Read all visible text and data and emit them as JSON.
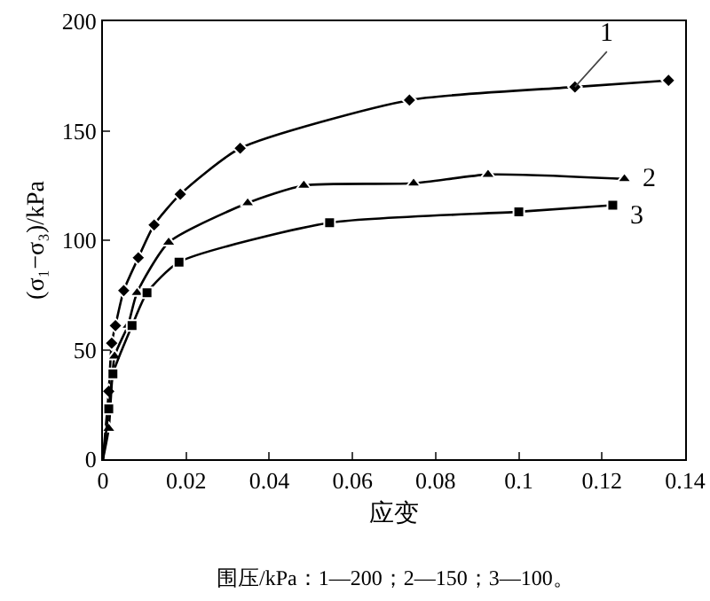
{
  "chart_data": {
    "type": "line",
    "xlabel": "应变",
    "ylabel": "(σ₁−σ₃)/kPa",
    "xlim": [
      0,
      0.14
    ],
    "xticks": [
      0,
      0.02,
      0.04,
      0.06,
      0.08,
      0.1,
      0.12,
      0.14
    ],
    "ylim": [
      0,
      200
    ],
    "yticks": [
      0,
      50,
      100,
      150,
      200
    ],
    "grid": false,
    "legend": false,
    "line_style": "solid",
    "series": [
      {
        "name": "1",
        "color": "#000000",
        "marker": "diamond",
        "x": [
          0,
          0.0014,
          0.0021,
          0.003,
          0.005,
          0.0085,
          0.0123,
          0.0186,
          0.033,
          0.0737,
          0.1135,
          0.136
        ],
        "values": [
          0,
          31,
          53,
          61,
          77,
          92,
          107,
          121,
          142,
          164,
          170,
          173
        ]
      },
      {
        "name": "2",
        "color": "#000000",
        "marker": "triangle",
        "x": [
          0,
          0.0014,
          0.0028,
          0.006,
          0.0082,
          0.0158,
          0.0348,
          0.0483,
          0.0747,
          0.0926,
          0.1254
        ],
        "values": [
          0,
          14,
          47,
          61,
          76,
          99,
          117,
          125,
          126,
          130,
          128
        ]
      },
      {
        "name": "3",
        "color": "#000000",
        "marker": "square",
        "x": [
          0,
          0.0014,
          0.0024,
          0.007,
          0.0106,
          0.0183,
          0.0545,
          0.1,
          0.1226
        ],
        "values": [
          0,
          23,
          39,
          61,
          76,
          90,
          108,
          113,
          116
        ]
      }
    ],
    "annotations": [
      "围压/kPa：1—200；2—150；3—100。"
    ]
  }
}
